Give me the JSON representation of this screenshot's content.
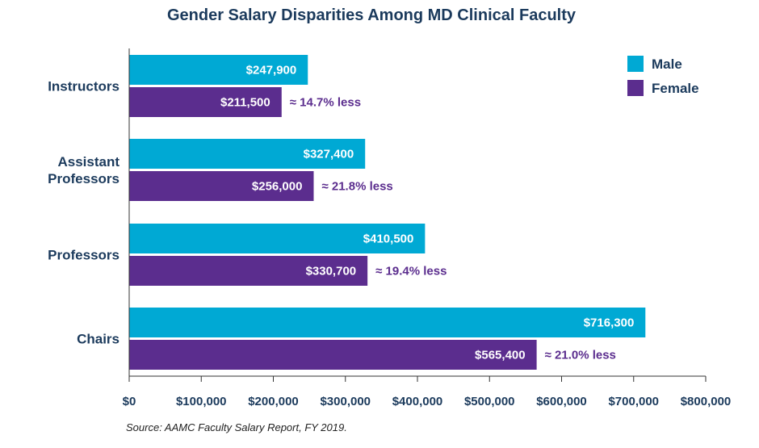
{
  "chart_data": {
    "type": "bar",
    "orientation": "horizontal",
    "title": "Gender Salary Disparities Among MD Clinical Faculty",
    "categories": [
      "Instructors",
      "Assistant Professors",
      "Professors",
      "Chairs"
    ],
    "category_label_lines": [
      [
        "Instructors"
      ],
      [
        "Assistant",
        "Professors"
      ],
      [
        "Professors"
      ],
      [
        "Chairs"
      ]
    ],
    "series": [
      {
        "name": "Male",
        "color": "#00a9d4",
        "values": [
          247900,
          327400,
          410500,
          716300
        ],
        "labels": [
          "$247,900",
          "$327,400",
          "$410,500",
          "$716,300"
        ]
      },
      {
        "name": "Female",
        "color": "#5b2d8e",
        "values": [
          211500,
          256000,
          330700,
          565400
        ],
        "labels": [
          "$211,500",
          "$256,000",
          "$330,700",
          "$565,400"
        ]
      }
    ],
    "annotations": [
      "≈ 14.7% less",
      "≈ 21.8% less",
      "≈ 19.4% less",
      "≈ 21.0% less"
    ],
    "xlim": [
      0,
      800000
    ],
    "xticks": [
      0,
      100000,
      200000,
      300000,
      400000,
      500000,
      600000,
      700000,
      800000
    ],
    "xtick_labels": [
      "$0",
      "$100,000",
      "$200,000",
      "$300,000",
      "$400,000",
      "$500,000",
      "$600,000",
      "$700,000",
      "$800,000"
    ],
    "xlabel": "",
    "ylabel": "",
    "grid": false,
    "legend_position": "top-right"
  },
  "source": "Source: AAMC Faculty Salary Report, FY 2019."
}
